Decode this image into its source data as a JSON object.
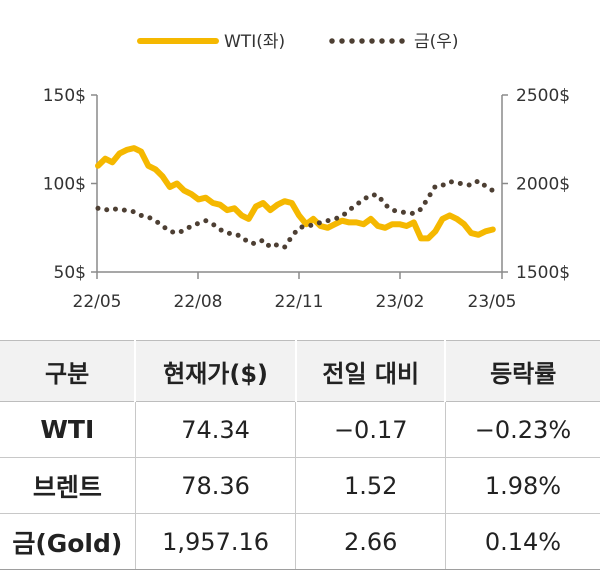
{
  "chart_data": {
    "type": "line",
    "legend": {
      "placement": "top-center",
      "items": [
        {
          "label": "WTI(좌)",
          "style": "solid",
          "color": "#f5b800"
        },
        {
          "label": "금(우)",
          "style": "dotted",
          "color": "#4d3f33"
        }
      ]
    },
    "x_ticks": [
      "22/05",
      "22/08",
      "22/11",
      "23/02",
      "23/05"
    ],
    "y_left": {
      "ticks": [
        "50$",
        "100$",
        "150$"
      ],
      "range": [
        50,
        150
      ]
    },
    "y_right": {
      "ticks": [
        "1500$",
        "2000$",
        "2500$"
      ],
      "range": [
        1500,
        2500
      ]
    },
    "series": [
      {
        "name": "WTI(좌)",
        "axis": "left",
        "color": "#f5b800",
        "style": "solid",
        "x": [
          "2022-05-02",
          "2022-05-09",
          "2022-05-16",
          "2022-05-23",
          "2022-05-30",
          "2022-06-06",
          "2022-06-13",
          "2022-06-20",
          "2022-06-27",
          "2022-07-04",
          "2022-07-11",
          "2022-07-18",
          "2022-07-25",
          "2022-08-01",
          "2022-08-08",
          "2022-08-15",
          "2022-08-22",
          "2022-08-29",
          "2022-09-05",
          "2022-09-12",
          "2022-09-19",
          "2022-09-26",
          "2022-10-03",
          "2022-10-10",
          "2022-10-17",
          "2022-10-24",
          "2022-10-31",
          "2022-11-07",
          "2022-11-14",
          "2022-11-21",
          "2022-11-28",
          "2022-12-05",
          "2022-12-12",
          "2022-12-19",
          "2022-12-26",
          "2023-01-02",
          "2023-01-09",
          "2023-01-16",
          "2023-01-23",
          "2023-01-30",
          "2023-02-06",
          "2023-02-13",
          "2023-02-20",
          "2023-02-27",
          "2023-03-06",
          "2023-03-13",
          "2023-03-20",
          "2023-03-27",
          "2023-04-03",
          "2023-04-10",
          "2023-04-17",
          "2023-04-24",
          "2023-05-01",
          "2023-05-08",
          "2023-05-15",
          "2023-05-22"
        ],
        "values": [
          110,
          114,
          112,
          117,
          119,
          120,
          118,
          110,
          108,
          104,
          98,
          100,
          96,
          94,
          91,
          92,
          89,
          88,
          85,
          86,
          82,
          80,
          87,
          89,
          85,
          88,
          90,
          89,
          82,
          77,
          80,
          76,
          75,
          77,
          79,
          78,
          78,
          77,
          80,
          76,
          75,
          77,
          77,
          76,
          78,
          69,
          69,
          73,
          80,
          82,
          80,
          77,
          72,
          71,
          73,
          74
        ]
      },
      {
        "name": "금(우)",
        "axis": "right",
        "color": "#4d3f33",
        "style": "dotted",
        "x": [
          "2022-05-02",
          "2022-05-09",
          "2022-05-16",
          "2022-05-23",
          "2022-05-30",
          "2022-06-06",
          "2022-06-13",
          "2022-06-20",
          "2022-06-27",
          "2022-07-04",
          "2022-07-11",
          "2022-07-18",
          "2022-07-25",
          "2022-08-01",
          "2022-08-08",
          "2022-08-15",
          "2022-08-22",
          "2022-08-29",
          "2022-09-05",
          "2022-09-12",
          "2022-09-19",
          "2022-09-26",
          "2022-10-03",
          "2022-10-10",
          "2022-10-17",
          "2022-10-24",
          "2022-10-31",
          "2022-11-07",
          "2022-11-14",
          "2022-11-21",
          "2022-11-28",
          "2022-12-05",
          "2022-12-12",
          "2022-12-19",
          "2022-12-26",
          "2023-01-02",
          "2023-01-09",
          "2023-01-16",
          "2023-01-23",
          "2023-01-30",
          "2023-02-06",
          "2023-02-13",
          "2023-02-20",
          "2023-02-27",
          "2023-03-06",
          "2023-03-13",
          "2023-03-20",
          "2023-03-27",
          "2023-04-03",
          "2023-04-10",
          "2023-04-17",
          "2023-04-24",
          "2023-05-01",
          "2023-05-08",
          "2023-05-15",
          "2023-05-22"
        ],
        "values": [
          1860,
          1850,
          1860,
          1850,
          1850,
          1840,
          1820,
          1810,
          1790,
          1760,
          1730,
          1720,
          1735,
          1760,
          1775,
          1790,
          1770,
          1740,
          1720,
          1715,
          1700,
          1665,
          1660,
          1680,
          1640,
          1655,
          1640,
          1700,
          1750,
          1760,
          1765,
          1780,
          1790,
          1800,
          1815,
          1850,
          1880,
          1910,
          1935,
          1935,
          1880,
          1850,
          1840,
          1835,
          1830,
          1855,
          1920,
          1985,
          1990,
          2010,
          2005,
          1995,
          1990,
          2015,
          1985,
          1960
        ]
      }
    ]
  },
  "table": {
    "headers": [
      "구분",
      "현재가($)",
      "전일 대비",
      "등락률"
    ],
    "rows": [
      {
        "name": "WTI",
        "price": "74.34",
        "change": "−0.17",
        "rate": "−0.23%"
      },
      {
        "name": "브렌트",
        "price": "78.36",
        "change": "1.52",
        "rate": "1.98%"
      },
      {
        "name": "금(Gold)",
        "price": "1,957.16",
        "change": "2.66",
        "rate": "0.14%"
      }
    ]
  }
}
